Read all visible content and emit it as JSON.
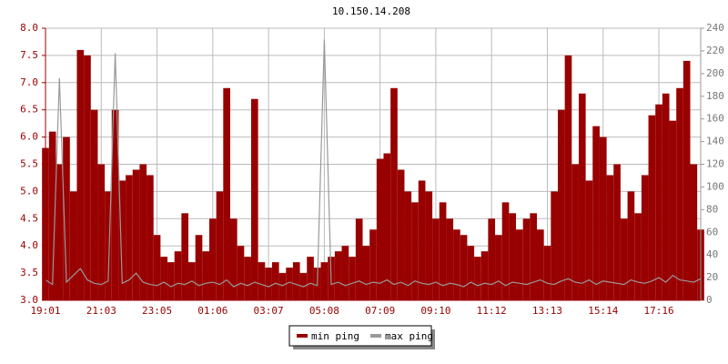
{
  "chart_data": {
    "type": "combo",
    "title": "10.150.14.208",
    "categories": [
      "19:01",
      null,
      null,
      null,
      null,
      null,
      null,
      null,
      "21:03",
      null,
      null,
      null,
      null,
      null,
      null,
      null,
      "23:05",
      null,
      null,
      null,
      null,
      null,
      null,
      null,
      "01:06",
      null,
      null,
      null,
      null,
      null,
      null,
      null,
      "03:07",
      null,
      null,
      null,
      null,
      null,
      null,
      null,
      "05:08",
      null,
      null,
      null,
      null,
      null,
      null,
      null,
      "07:09",
      null,
      null,
      null,
      null,
      null,
      null,
      null,
      "09:10",
      null,
      null,
      null,
      null,
      null,
      null,
      null,
      "11:12",
      null,
      null,
      null,
      null,
      null,
      null,
      null,
      "13:13",
      null,
      null,
      null,
      null,
      null,
      null,
      null,
      "15:14",
      null,
      null,
      null,
      null,
      null,
      null,
      null,
      "17:16",
      null,
      null,
      null,
      null,
      null,
      null
    ],
    "series": [
      {
        "name": "min ping",
        "color": "#990000",
        "type": "bar",
        "values": [
          5.8,
          6.1,
          5.5,
          6.0,
          5.0,
          7.6,
          7.5,
          6.5,
          5.5,
          5.0,
          6.5,
          5.2,
          5.3,
          5.4,
          5.5,
          5.3,
          4.2,
          3.8,
          3.7,
          3.9,
          4.6,
          3.7,
          4.2,
          3.9,
          4.5,
          5.0,
          6.9,
          4.5,
          4.0,
          3.8,
          6.7,
          3.7,
          3.6,
          3.7,
          3.5,
          3.6,
          3.7,
          3.5,
          3.8,
          3.6,
          3.7,
          3.8,
          3.9,
          4.0,
          3.8,
          4.5,
          4.0,
          4.3,
          5.6,
          5.7,
          6.9,
          5.4,
          5.0,
          4.8,
          5.2,
          5.0,
          4.5,
          4.8,
          4.5,
          4.3,
          4.2,
          4.0,
          3.8,
          3.9,
          4.5,
          4.2,
          4.8,
          4.6,
          4.3,
          4.5,
          4.6,
          4.3,
          4.0,
          5.0,
          6.5,
          7.5,
          5.5,
          6.8,
          5.2,
          6.2,
          6.0,
          5.3,
          5.5,
          4.5,
          5.0,
          4.6,
          5.3,
          6.4,
          6.6,
          6.8,
          6.3,
          6.9,
          7.4,
          5.5,
          4.3
        ]
      },
      {
        "name": "max ping",
        "color": "#999999",
        "type": "line",
        "axis": "y2",
        "values": [
          18,
          14,
          196,
          16,
          22,
          28,
          18,
          15,
          14,
          17,
          218,
          15,
          18,
          24,
          16,
          14,
          13,
          16,
          12,
          15,
          14,
          17,
          13,
          15,
          16,
          14,
          18,
          12,
          15,
          13,
          16,
          14,
          12,
          15,
          13,
          16,
          14,
          12,
          15,
          13,
          230,
          14,
          16,
          13,
          15,
          17,
          14,
          16,
          15,
          18,
          14,
          16,
          13,
          17,
          15,
          14,
          16,
          13,
          15,
          14,
          12,
          16,
          13,
          15,
          14,
          17,
          13,
          16,
          15,
          14,
          16,
          18,
          15,
          14,
          17,
          19,
          16,
          15,
          18,
          14,
          17,
          16,
          15,
          14,
          18,
          16,
          15,
          17,
          20,
          16,
          22,
          18,
          17,
          16,
          19
        ]
      }
    ],
    "ylim": [
      3.0,
      8.0
    ],
    "yticks": [
      {
        "value": 3,
        "label": "3.0"
      },
      3.5,
      {
        "value": 4,
        "label": "4.0"
      },
      4.5,
      {
        "value": 5,
        "label": "5.0"
      },
      5.5,
      {
        "value": 6,
        "label": "6.0"
      },
      6.5,
      {
        "value": 7,
        "label": "7.0"
      },
      7.5,
      {
        "value": 8,
        "label": "8.0"
      }
    ],
    "y2lim": [
      0,
      240
    ],
    "y2ticks": [
      0,
      20,
      40,
      60,
      80,
      100,
      120,
      140,
      160,
      180,
      200,
      220,
      240
    ],
    "grid": true,
    "legend": "bottom"
  }
}
